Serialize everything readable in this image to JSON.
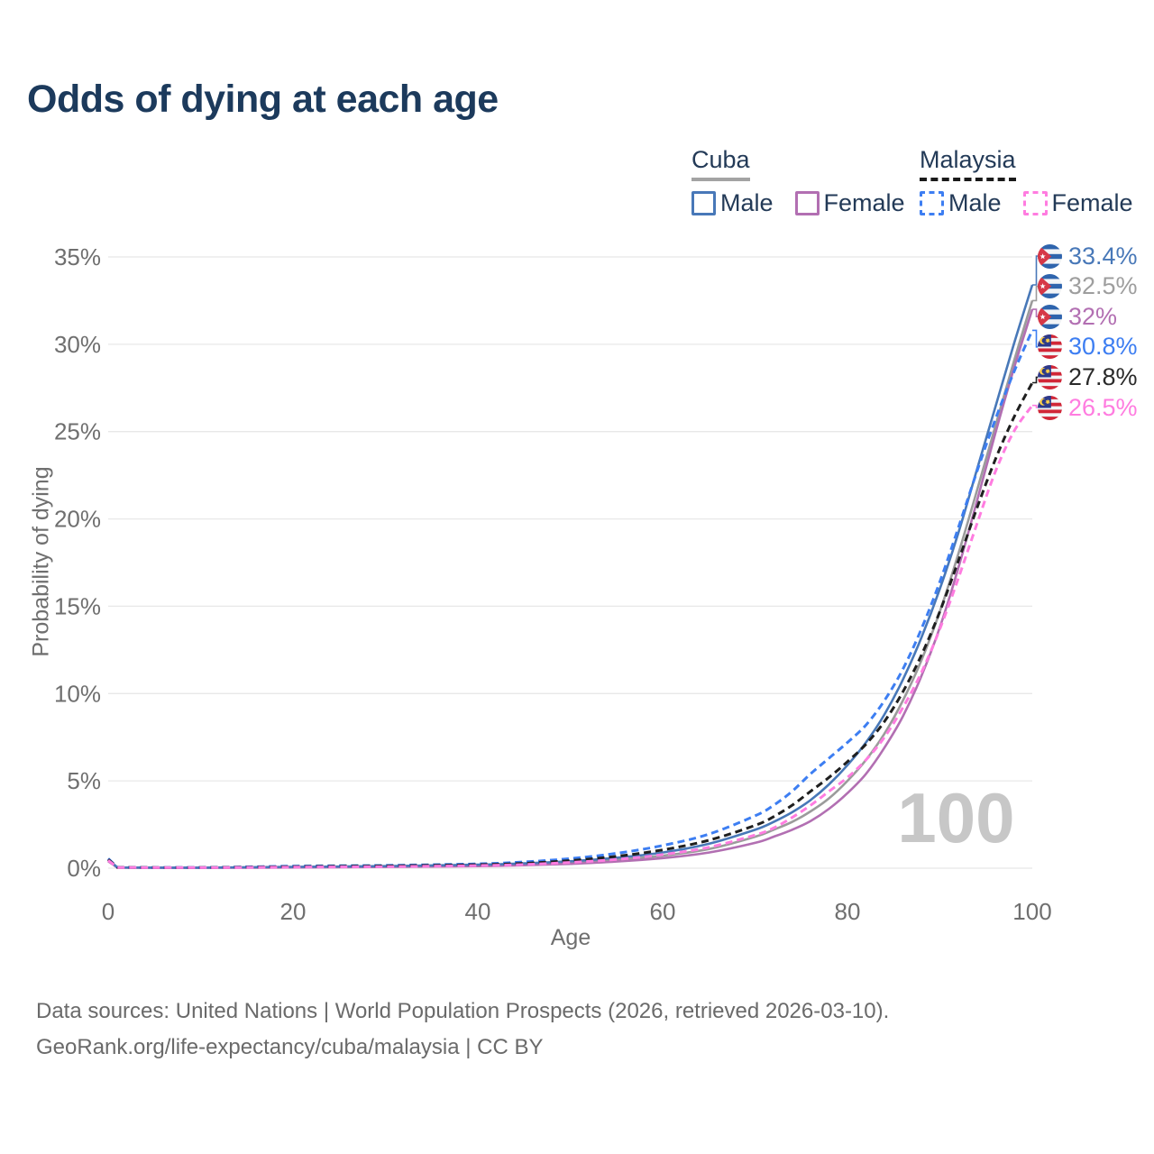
{
  "title": "Odds of dying at each age",
  "legend": {
    "groups": [
      {
        "label": "Cuba",
        "line_style": "solid",
        "underline_color": "#a3a3a3",
        "items": [
          {
            "label": "Male",
            "color": "#4878b8"
          },
          {
            "label": "Female",
            "color": "#b26fb2"
          }
        ]
      },
      {
        "label": "Malaysia",
        "line_style": "dashed",
        "underline_color": "#1a1a1a",
        "items": [
          {
            "label": "Male",
            "color": "#3d7ef2"
          },
          {
            "label": "Female",
            "color": "#ff7ce0"
          }
        ]
      }
    ]
  },
  "chart_data": {
    "type": "line",
    "title": "Odds of dying at each age",
    "xlabel": "Age",
    "ylabel": "Probability of dying",
    "xlim": [
      0,
      100
    ],
    "ylim": [
      0,
      35
    ],
    "x_ticks": [
      0,
      20,
      40,
      60,
      80,
      100
    ],
    "y_ticks": [
      "0%",
      "5%",
      "10%",
      "15%",
      "20%",
      "25%",
      "30%",
      "35%"
    ],
    "grid": "horizontal",
    "hover_age_label": "100",
    "x": [
      0,
      1,
      10,
      20,
      30,
      40,
      45,
      50,
      55,
      60,
      65,
      70,
      72,
      74,
      76,
      78,
      80,
      82,
      84,
      86,
      88,
      90,
      92,
      94,
      96,
      98,
      100
    ],
    "series": [
      {
        "id": "cuba-male",
        "country": "Cuba",
        "sex": "Male",
        "flag": "cuba",
        "color": "#4878b8",
        "dash": false,
        "end_value": 33.4,
        "end_label": "33.4%",
        "label_color": "#4878b8",
        "values": [
          0.5,
          0.04,
          0.03,
          0.08,
          0.12,
          0.2,
          0.28,
          0.4,
          0.6,
          0.9,
          1.4,
          2.2,
          2.65,
          3.2,
          3.9,
          4.8,
          5.9,
          7.2,
          8.8,
          10.8,
          13.2,
          16.0,
          19.2,
          22.8,
          26.4,
          30.0,
          33.4
        ]
      },
      {
        "id": "cuba-both-sexes",
        "country": "Cuba",
        "sex": "Both sexes",
        "flag": "cuba",
        "color": "#9b9b9b",
        "dash": false,
        "end_value": 32.5,
        "end_label": "32.5%",
        "label_color": "#9e9e9e",
        "values": [
          0.45,
          0.035,
          0.025,
          0.06,
          0.1,
          0.16,
          0.22,
          0.32,
          0.48,
          0.72,
          1.1,
          1.8,
          2.2,
          2.65,
          3.25,
          4.0,
          5.0,
          6.2,
          7.7,
          9.6,
          11.9,
          14.7,
          18.0,
          21.6,
          25.3,
          29.0,
          32.5
        ]
      },
      {
        "id": "cuba-female",
        "country": "Cuba",
        "sex": "Female",
        "flag": "cuba",
        "color": "#b26fb2",
        "dash": false,
        "end_value": 32.0,
        "end_label": "32%",
        "label_color": "#b26fb2",
        "values": [
          0.4,
          0.03,
          0.02,
          0.04,
          0.07,
          0.12,
          0.17,
          0.25,
          0.38,
          0.58,
          0.9,
          1.45,
          1.8,
          2.2,
          2.7,
          3.4,
          4.3,
          5.4,
          6.9,
          8.7,
          11.0,
          13.8,
          17.2,
          21.0,
          24.9,
          28.6,
          32.0
        ]
      },
      {
        "id": "malaysia-male",
        "country": "Malaysia",
        "sex": "Male",
        "flag": "malaysia",
        "color": "#3d7ef2",
        "dash": true,
        "end_value": 30.8,
        "end_label": "30.8%",
        "label_color": "#3d7ef2",
        "values": [
          0.55,
          0.05,
          0.04,
          0.12,
          0.16,
          0.25,
          0.36,
          0.55,
          0.85,
          1.3,
          1.95,
          3.0,
          3.6,
          4.4,
          5.4,
          6.3,
          7.2,
          8.2,
          9.6,
          11.4,
          13.7,
          16.4,
          19.5,
          22.7,
          25.7,
          28.4,
          30.8
        ]
      },
      {
        "id": "malaysia-both-sexes",
        "country": "Malaysia",
        "sex": "Both sexes",
        "flag": "malaysia",
        "color": "#1f1f1f",
        "dash": true,
        "end_value": 27.8,
        "end_label": "27.8%",
        "label_color": "#2a2a2a",
        "values": [
          0.5,
          0.045,
          0.035,
          0.09,
          0.13,
          0.2,
          0.28,
          0.44,
          0.68,
          1.05,
          1.6,
          2.45,
          2.95,
          3.6,
          4.4,
          5.2,
          6.1,
          7.1,
          8.4,
          10.1,
          12.2,
          14.7,
          17.6,
          20.6,
          23.4,
          25.8,
          27.8
        ]
      },
      {
        "id": "malaysia-female",
        "country": "Malaysia",
        "sex": "Female",
        "flag": "malaysia",
        "color": "#ff7ce0",
        "dash": true,
        "end_value": 26.5,
        "end_label": "26.5%",
        "label_color": "#ff7ce0",
        "values": [
          0.45,
          0.04,
          0.03,
          0.06,
          0.09,
          0.15,
          0.21,
          0.33,
          0.5,
          0.78,
          1.2,
          1.9,
          2.3,
          2.9,
          3.6,
          4.4,
          5.2,
          6.2,
          7.5,
          9.2,
          11.2,
          13.7,
          16.6,
          19.7,
          22.7,
          25.0,
          26.5
        ]
      }
    ]
  },
  "footer": {
    "line1": "Data sources: United Nations | World Population Prospects (2026, retrieved 2026-03-10).",
    "line2": "GeoRank.org/life-expectancy/cuba/malaysia | CC BY"
  }
}
